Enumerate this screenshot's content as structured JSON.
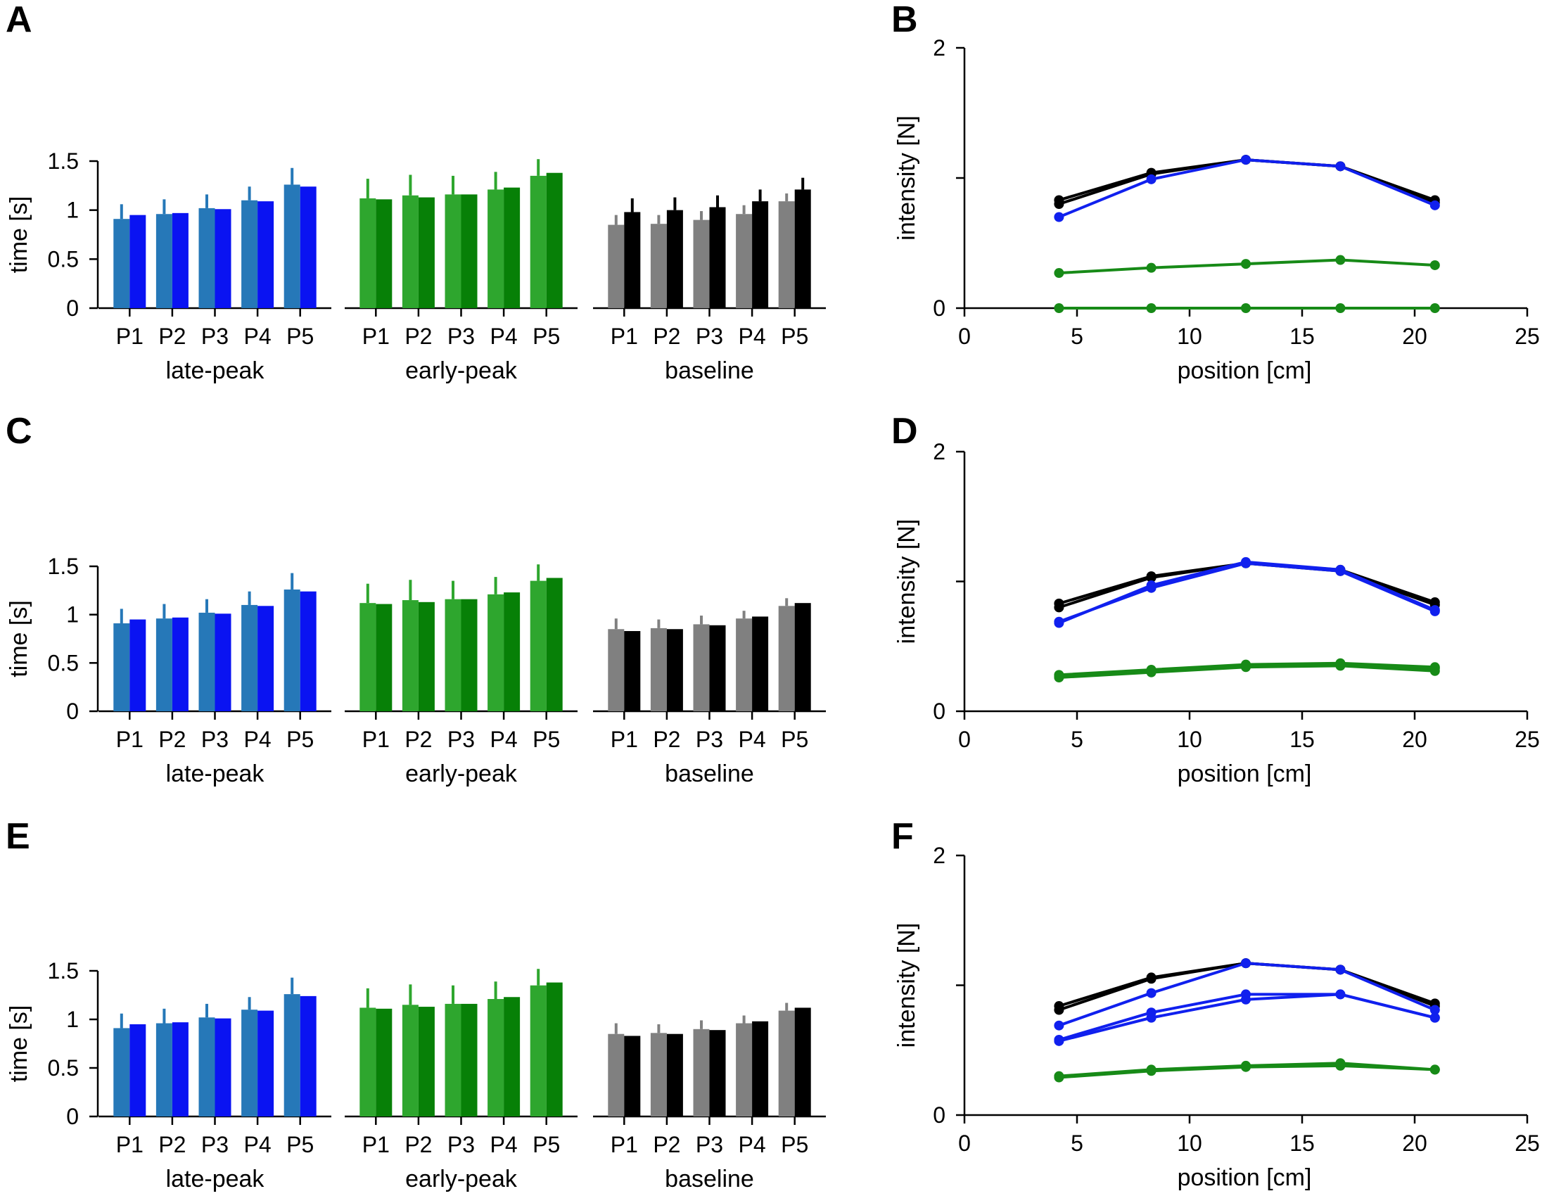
{
  "figure": {
    "panel_letters": [
      "A",
      "B",
      "C",
      "D",
      "E",
      "F"
    ]
  },
  "colors": {
    "late_light": "#2678b8",
    "late_dark": "#0a13f2",
    "early_light": "#2ea62e",
    "early_dark": "#078007",
    "base_light": "#808080",
    "base_dark": "#000000",
    "line_black": "#000000",
    "line_blue": "#1020ee",
    "line_green": "#178a17"
  },
  "chart_data": [
    {
      "panel": "A",
      "type": "bar",
      "ylabel": "time [s]",
      "ylim": [
        0,
        1.5
      ],
      "yticks": [
        "0",
        "0.5",
        "1",
        "1.5"
      ],
      "categories": [
        "P1",
        "P2",
        "P3",
        "P4",
        "P5"
      ],
      "groups": [
        {
          "label": "late-peak",
          "colors": [
            "late_light",
            "late_dark"
          ],
          "series": [
            {
              "values": [
                0.91,
                0.96,
                1.02,
                1.1,
                1.26
              ],
              "errors": [
                0.15,
                0.15,
                0.14,
                0.14,
                0.17
              ]
            },
            {
              "values": [
                0.95,
                0.97,
                1.01,
                1.09,
                1.24
              ],
              "errors": [
                0,
                0,
                0,
                0,
                0
              ]
            }
          ]
        },
        {
          "label": "early-peak",
          "colors": [
            "early_light",
            "early_dark"
          ],
          "series": [
            {
              "values": [
                1.12,
                1.15,
                1.16,
                1.21,
                1.35
              ],
              "errors": [
                0.2,
                0.21,
                0.19,
                0.18,
                0.17
              ]
            },
            {
              "values": [
                1.11,
                1.13,
                1.16,
                1.23,
                1.38
              ],
              "errors": [
                0,
                0,
                0,
                0,
                0
              ]
            }
          ]
        },
        {
          "label": "baseline",
          "colors": [
            "base_light",
            "base_dark"
          ],
          "series": [
            {
              "values": [
                0.85,
                0.86,
                0.9,
                0.96,
                1.09
              ],
              "errors": [
                0.1,
                0.09,
                0.09,
                0.09,
                0.08
              ]
            },
            {
              "values": [
                0.98,
                1.0,
                1.03,
                1.09,
                1.21
              ],
              "errors": [
                0.14,
                0.13,
                0.12,
                0.12,
                0.12
              ]
            }
          ]
        }
      ]
    },
    {
      "panel": "B",
      "type": "line",
      "xlabel": "position [cm]",
      "ylabel": "intensity [N]",
      "xlim": [
        0,
        25
      ],
      "ylim": [
        0,
        2
      ],
      "xticks": [
        "0",
        "5",
        "10",
        "15",
        "20",
        "25"
      ],
      "yticks": [
        "0",
        "2"
      ],
      "x": [
        4.2,
        8.3,
        12.5,
        16.7,
        20.9
      ],
      "series": [
        {
          "color": "line_black",
          "values": [
            0.83,
            1.04,
            1.14,
            1.09,
            0.83
          ]
        },
        {
          "color": "line_black",
          "values": [
            0.8,
            1.03,
            1.14,
            1.09,
            0.81
          ]
        },
        {
          "color": "line_blue",
          "values": [
            0.7,
            0.99,
            1.14,
            1.09,
            0.79
          ]
        },
        {
          "color": "line_green",
          "values": [
            0.27,
            0.31,
            0.34,
            0.37,
            0.33
          ]
        },
        {
          "color": "line_green",
          "values": [
            0.0,
            0.0,
            0.0,
            0.0,
            0.0
          ]
        }
      ]
    },
    {
      "panel": "C",
      "type": "bar",
      "ylabel": "time [s]",
      "ylim": [
        0,
        1.5
      ],
      "yticks": [
        "0",
        "0.5",
        "1",
        "1.5"
      ],
      "categories": [
        "P1",
        "P2",
        "P3",
        "P4",
        "P5"
      ],
      "groups": [
        {
          "label": "late-peak",
          "colors": [
            "late_light",
            "late_dark"
          ],
          "series": [
            {
              "values": [
                0.91,
                0.96,
                1.02,
                1.1,
                1.26
              ],
              "errors": [
                0.15,
                0.15,
                0.14,
                0.14,
                0.17
              ]
            },
            {
              "values": [
                0.95,
                0.97,
                1.01,
                1.09,
                1.24
              ],
              "errors": [
                0,
                0,
                0,
                0,
                0
              ]
            }
          ]
        },
        {
          "label": "early-peak",
          "colors": [
            "early_light",
            "early_dark"
          ],
          "series": [
            {
              "values": [
                1.12,
                1.15,
                1.16,
                1.21,
                1.35
              ],
              "errors": [
                0.2,
                0.21,
                0.19,
                0.18,
                0.17
              ]
            },
            {
              "values": [
                1.11,
                1.13,
                1.16,
                1.23,
                1.38
              ],
              "errors": [
                0,
                0,
                0,
                0,
                0
              ]
            }
          ]
        },
        {
          "label": "baseline",
          "colors": [
            "base_light",
            "base_dark"
          ],
          "series": [
            {
              "values": [
                0.85,
                0.86,
                0.9,
                0.96,
                1.09
              ],
              "errors": [
                0.11,
                0.09,
                0.09,
                0.08,
                0.08
              ]
            },
            {
              "values": [
                0.83,
                0.85,
                0.89,
                0.98,
                1.12
              ],
              "errors": [
                0,
                0,
                0,
                0,
                0
              ]
            }
          ]
        }
      ]
    },
    {
      "panel": "D",
      "type": "line",
      "xlabel": "position [cm]",
      "ylabel": "intensity [N]",
      "xlim": [
        0,
        25
      ],
      "ylim": [
        0,
        2
      ],
      "xticks": [
        "0",
        "5",
        "10",
        "15",
        "20",
        "25"
      ],
      "yticks": [
        "0",
        "2"
      ],
      "x": [
        4.2,
        8.3,
        12.5,
        16.7,
        20.9
      ],
      "series": [
        {
          "color": "line_black",
          "values": [
            0.83,
            1.04,
            1.14,
            1.09,
            0.84
          ]
        },
        {
          "color": "line_black",
          "values": [
            0.8,
            1.03,
            1.14,
            1.08,
            0.82
          ]
        },
        {
          "color": "line_blue",
          "values": [
            0.68,
            0.97,
            1.15,
            1.09,
            0.78
          ]
        },
        {
          "color": "line_blue",
          "values": [
            0.69,
            0.95,
            1.14,
            1.08,
            0.77
          ]
        },
        {
          "color": "line_green",
          "values": [
            0.28,
            0.32,
            0.36,
            0.37,
            0.34
          ]
        },
        {
          "color": "line_green",
          "values": [
            0.27,
            0.31,
            0.35,
            0.36,
            0.33
          ]
        },
        {
          "color": "line_green",
          "values": [
            0.26,
            0.3,
            0.34,
            0.35,
            0.31
          ]
        }
      ]
    },
    {
      "panel": "E",
      "type": "bar",
      "ylabel": "time [s]",
      "ylim": [
        0,
        1.5
      ],
      "yticks": [
        "0",
        "0.5",
        "1",
        "1.5"
      ],
      "categories": [
        "P1",
        "P2",
        "P3",
        "P4",
        "P5"
      ],
      "groups": [
        {
          "label": "late-peak",
          "colors": [
            "late_light",
            "late_dark"
          ],
          "series": [
            {
              "values": [
                0.91,
                0.96,
                1.02,
                1.1,
                1.26
              ],
              "errors": [
                0.15,
                0.15,
                0.14,
                0.13,
                0.17
              ]
            },
            {
              "values": [
                0.95,
                0.97,
                1.01,
                1.09,
                1.24
              ],
              "errors": [
                0,
                0,
                0,
                0,
                0
              ]
            }
          ]
        },
        {
          "label": "early-peak",
          "colors": [
            "early_light",
            "early_dark"
          ],
          "series": [
            {
              "values": [
                1.12,
                1.15,
                1.16,
                1.21,
                1.35
              ],
              "errors": [
                0.2,
                0.21,
                0.19,
                0.18,
                0.17
              ]
            },
            {
              "values": [
                1.11,
                1.13,
                1.16,
                1.23,
                1.38
              ],
              "errors": [
                0,
                0,
                0,
                0,
                0
              ]
            }
          ]
        },
        {
          "label": "baseline",
          "colors": [
            "base_light",
            "base_dark"
          ],
          "series": [
            {
              "values": [
                0.85,
                0.86,
                0.9,
                0.96,
                1.09
              ],
              "errors": [
                0.11,
                0.09,
                0.09,
                0.08,
                0.08
              ]
            },
            {
              "values": [
                0.83,
                0.85,
                0.89,
                0.98,
                1.12
              ],
              "errors": [
                0,
                0,
                0,
                0,
                0
              ]
            }
          ]
        }
      ]
    },
    {
      "panel": "F",
      "type": "line",
      "xlabel": "position [cm]",
      "ylabel": "intensity [N]",
      "xlim": [
        0,
        25
      ],
      "ylim": [
        0,
        2
      ],
      "xticks": [
        "0",
        "5",
        "10",
        "15",
        "20",
        "25"
      ],
      "yticks": [
        "0",
        "2"
      ],
      "x": [
        4.2,
        8.3,
        12.5,
        16.7,
        20.9
      ],
      "series": [
        {
          "color": "line_black",
          "values": [
            0.84,
            1.06,
            1.17,
            1.12,
            0.86
          ]
        },
        {
          "color": "line_black",
          "values": [
            0.81,
            1.05,
            1.17,
            1.12,
            0.84
          ]
        },
        {
          "color": "line_blue",
          "values": [
            0.69,
            0.94,
            1.17,
            1.12,
            0.81
          ]
        },
        {
          "color": "line_blue",
          "values": [
            0.58,
            0.79,
            0.93,
            0.93,
            0.75
          ]
        },
        {
          "color": "line_blue",
          "values": [
            0.57,
            0.75,
            0.89,
            0.93,
            0.75
          ]
        },
        {
          "color": "line_green",
          "values": [
            0.3,
            0.35,
            0.38,
            0.4,
            0.35
          ]
        },
        {
          "color": "line_green",
          "values": [
            0.29,
            0.34,
            0.37,
            0.38,
            0.35
          ]
        }
      ]
    }
  ]
}
